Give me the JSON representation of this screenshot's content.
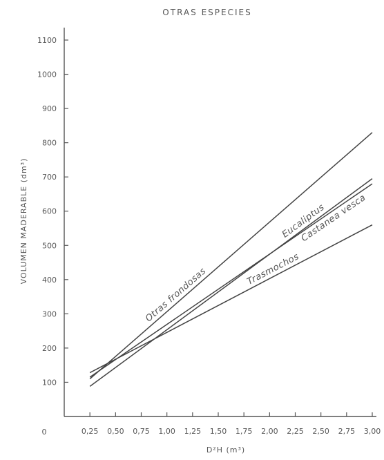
{
  "chart_data": {
    "type": "line",
    "title": "OTRAS ESPECIES",
    "xlabel": "D²H (m³)",
    "ylabel": "VOLUMEN MADERABLE (dm³)",
    "origin_label": "0",
    "xlim": [
      0,
      3.0
    ],
    "ylim": [
      0,
      1100
    ],
    "x_ticks": [
      0.25,
      0.5,
      0.75,
      1.0,
      1.25,
      1.5,
      1.75,
      2.0,
      2.25,
      2.5,
      2.75,
      3.0
    ],
    "x_tick_labels": [
      "0,25",
      "0,50",
      "0,75",
      "1,00",
      "1,25",
      "1,50",
      "1,75",
      "2,00",
      "2,25",
      "2,50",
      "2,75",
      "3,00"
    ],
    "y_ticks": [
      100,
      200,
      300,
      400,
      500,
      600,
      700,
      800,
      900,
      1000,
      1100
    ],
    "y_tick_labels": [
      "100",
      "200",
      "300",
      "400",
      "500",
      "600",
      "700",
      "800",
      "900",
      "1000",
      "1100"
    ],
    "grid": false,
    "series": [
      {
        "name": "Otras frondosas",
        "x": [
          0.25,
          3.0
        ],
        "y": [
          110,
          830
        ]
      },
      {
        "name": "Eucaliptus",
        "x": [
          0.25,
          3.0
        ],
        "y": [
          88,
          695
        ]
      },
      {
        "name": "Castanea vesca",
        "x": [
          0.25,
          3.0
        ],
        "y": [
          115,
          680
        ]
      },
      {
        "name": "Trasmochos",
        "x": [
          0.25,
          3.0
        ],
        "y": [
          128,
          560
        ]
      }
    ]
  }
}
